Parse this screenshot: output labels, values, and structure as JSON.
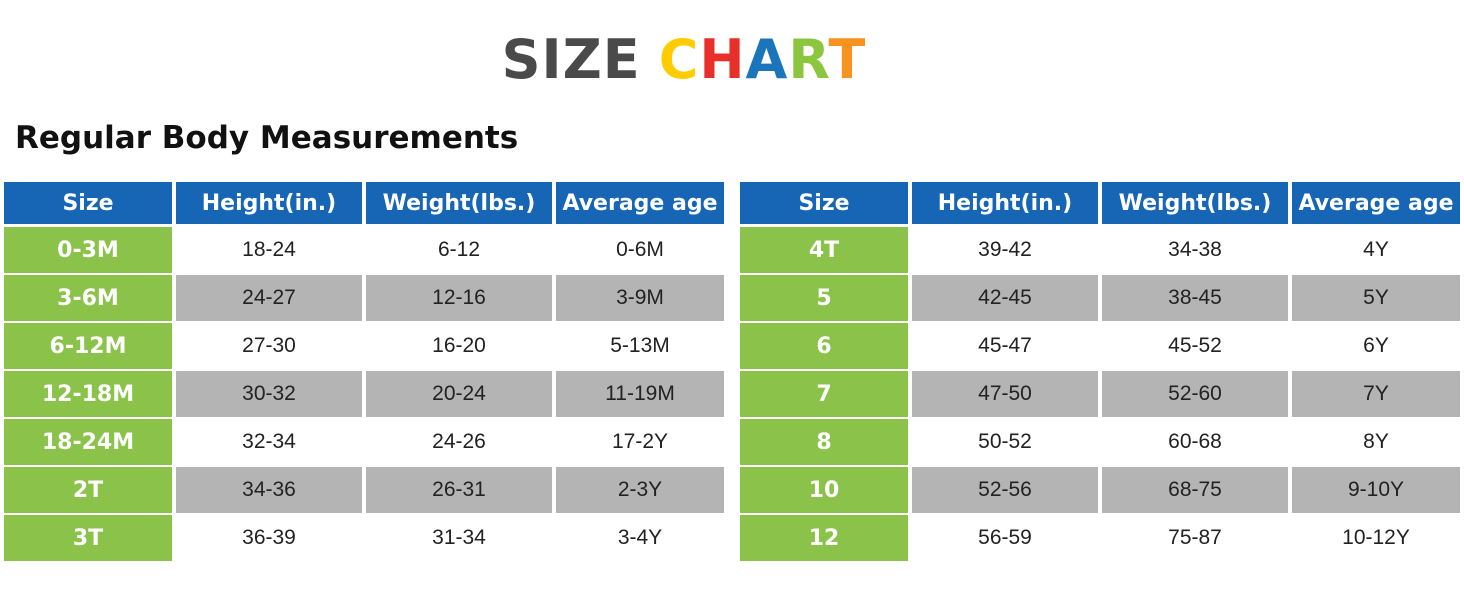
{
  "title": {
    "part1": "SIZE",
    "letters": [
      {
        "ch": "C",
        "color": "#ffcc00"
      },
      {
        "ch": "H",
        "color": "#e8302a"
      },
      {
        "ch": "A",
        "color": "#1b75bb"
      },
      {
        "ch": "R",
        "color": "#8cc63f"
      },
      {
        "ch": "T",
        "color": "#f7931e"
      }
    ]
  },
  "subtitle": "Regular Body Measurements",
  "colors": {
    "header_bg": "#1666b5",
    "size_bg": "#8bc34a",
    "shade_bg": "#b4b4b4"
  },
  "tables": [
    {
      "headers": [
        "Size",
        "Height(in.)",
        "Weight(lbs.)",
        "Average age"
      ],
      "rows": [
        [
          "0-3M",
          "18-24",
          "6-12",
          "0-6M"
        ],
        [
          "3-6M",
          "24-27",
          "12-16",
          "3-9M"
        ],
        [
          "6-12M",
          "27-30",
          "16-20",
          "5-13M"
        ],
        [
          "12-18M",
          "30-32",
          "20-24",
          "11-19M"
        ],
        [
          "18-24M",
          "32-34",
          "24-26",
          "17-2Y"
        ],
        [
          "2T",
          "34-36",
          "26-31",
          "2-3Y"
        ],
        [
          "3T",
          "36-39",
          "31-34",
          "3-4Y"
        ]
      ]
    },
    {
      "headers": [
        "Size",
        "Height(in.)",
        "Weight(lbs.)",
        "Average age"
      ],
      "rows": [
        [
          "4T",
          "39-42",
          "34-38",
          "4Y"
        ],
        [
          "5",
          "42-45",
          "38-45",
          "5Y"
        ],
        [
          "6",
          "45-47",
          "45-52",
          "6Y"
        ],
        [
          "7",
          "47-50",
          "52-60",
          "7Y"
        ],
        [
          "8",
          "50-52",
          "60-68",
          "8Y"
        ],
        [
          "10",
          "52-56",
          "68-75",
          "9-10Y"
        ],
        [
          "12",
          "56-59",
          "75-87",
          "10-12Y"
        ]
      ]
    }
  ]
}
